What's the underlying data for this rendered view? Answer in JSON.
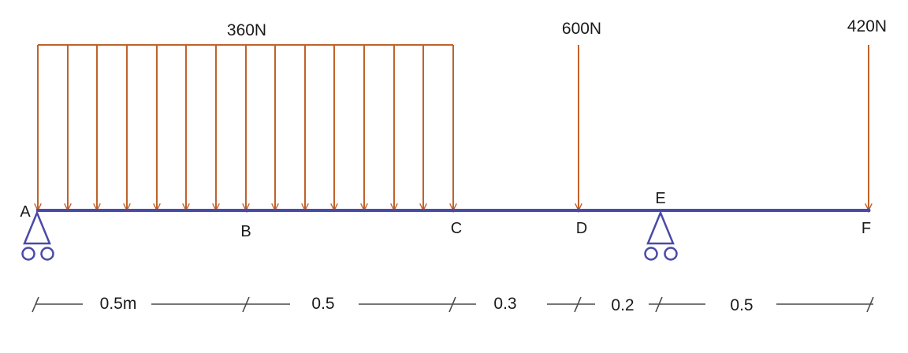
{
  "colors": {
    "beam": "#4a4aa8",
    "load": "#c0622a",
    "dimension": "#4a4a4a",
    "text": "#1a1a1a"
  },
  "loads": {
    "distributed_label": "360N",
    "point_d_label": "600N",
    "point_f_label": "420N"
  },
  "points": {
    "a": "A",
    "b": "B",
    "c": "C",
    "d": "D",
    "e": "E",
    "f": "F"
  },
  "dimensions": {
    "ab": "0.5m",
    "bc": "0.5",
    "cd": "0.3",
    "de": "0.2",
    "ef": "0.5"
  }
}
